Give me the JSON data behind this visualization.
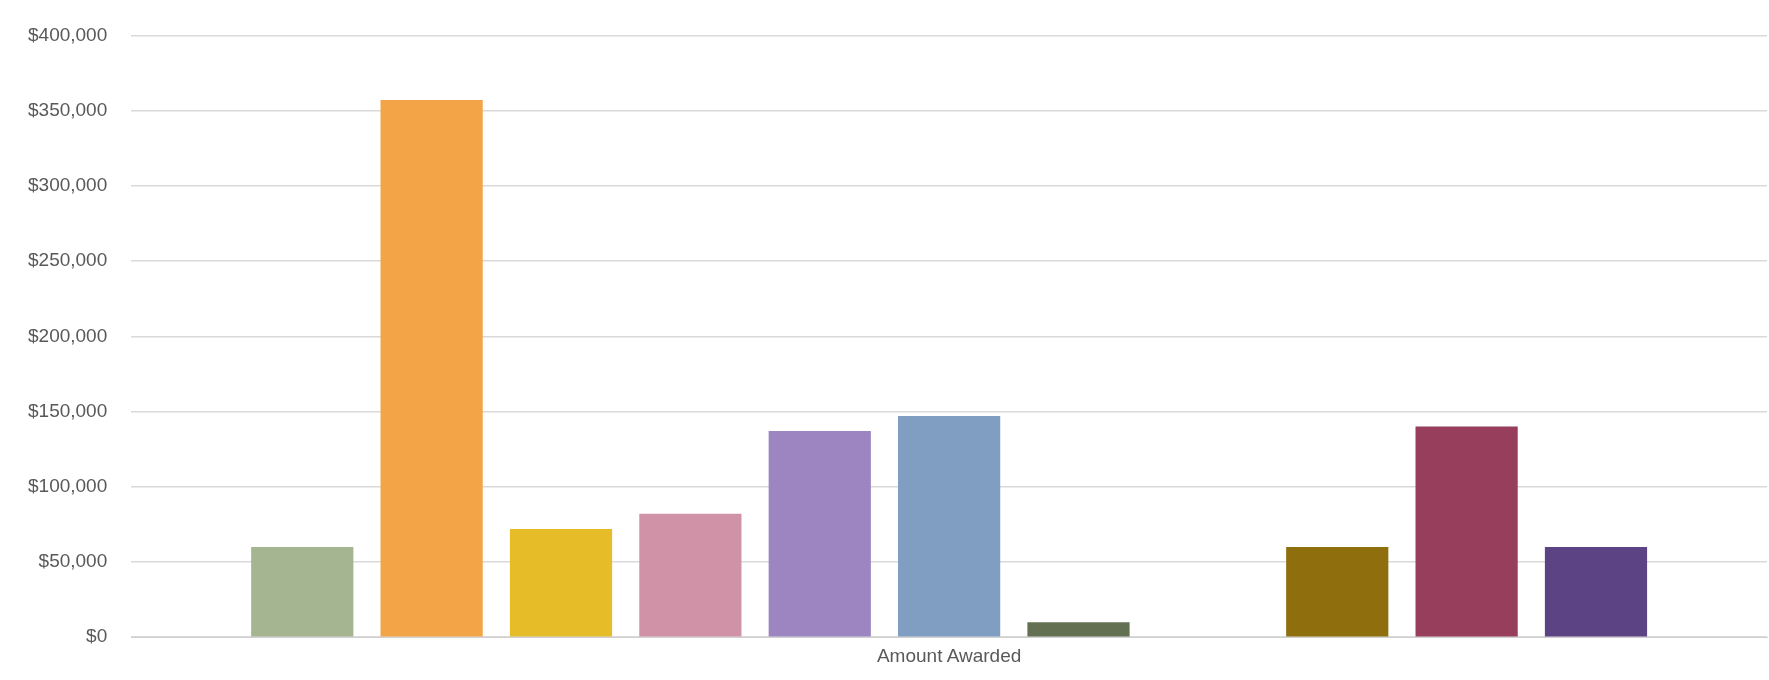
{
  "chart_data": {
    "type": "bar",
    "xlabel": null,
    "categories": [
      "Amount Awarded"
    ],
    "series": [
      {
        "color": "#a5b592",
        "values": [
          60000
        ]
      },
      {
        "color": "#f3a447",
        "values": [
          357000
        ]
      },
      {
        "color": "#e7bc29",
        "values": [
          72000
        ]
      },
      {
        "color": "#d092a7",
        "values": [
          82000
        ]
      },
      {
        "color": "#9c85c0",
        "values": [
          137000
        ]
      },
      {
        "color": "#809ec2",
        "values": [
          147000
        ]
      },
      {
        "color": "#637052",
        "values": [
          10000
        ]
      },
      {
        "values": [
          null
        ]
      },
      {
        "color": "#8f6f0d",
        "values": [
          60000
        ]
      },
      {
        "color": "#963e5b",
        "values": [
          140000
        ]
      },
      {
        "color": "#5c4384",
        "values": [
          60000
        ]
      }
    ],
    "ylim": [
      0,
      400000
    ],
    "yticks": [
      {
        "value": 0,
        "label": "$0"
      },
      {
        "value": 50000,
        "label": "$50,000"
      },
      {
        "value": 100000,
        "label": "$100,000"
      },
      {
        "value": 150000,
        "label": "$150,000"
      },
      {
        "value": 200000,
        "label": "$200,000"
      },
      {
        "value": 250000,
        "label": "$250,000"
      },
      {
        "value": 300000,
        "label": "$300,000"
      },
      {
        "value": 350000,
        "label": "$350,000"
      },
      {
        "value": 400000,
        "label": "$400,000"
      }
    ],
    "grid": "y",
    "legend": false
  }
}
